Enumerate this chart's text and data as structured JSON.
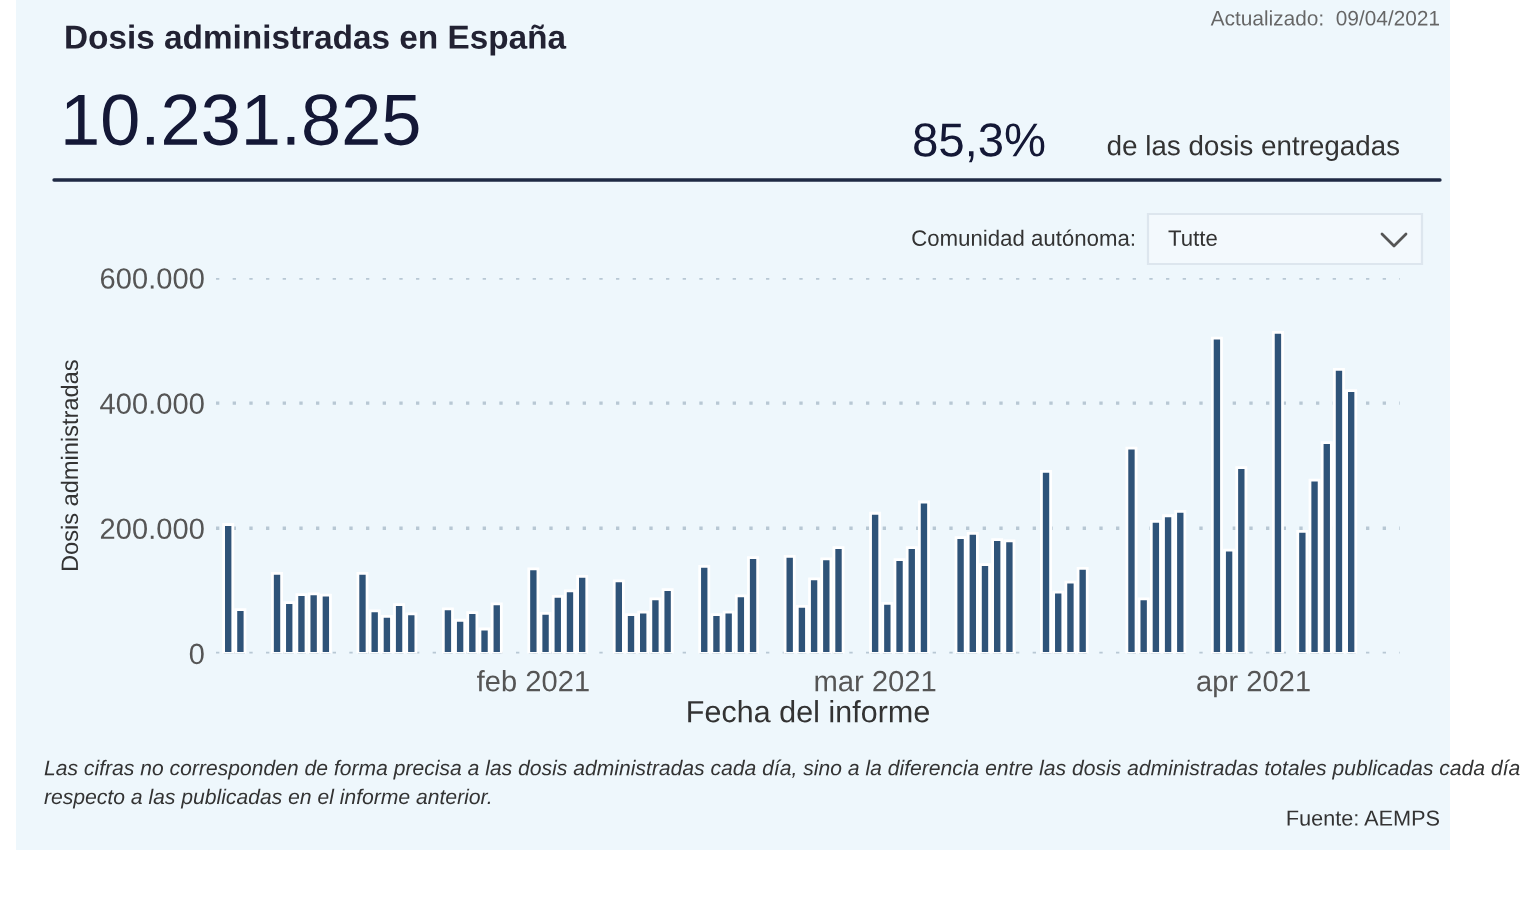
{
  "chart_data": {
    "type": "bar",
    "title": "Dosis administradas en España",
    "subtitle": "10.231.825",
    "xlabel": "Fecha del informe",
    "ylabel": "Dosis administradas",
    "annotations": [
      "Actualizado:  09/04/2021",
      "85,3%",
      "de las dosis entregadas",
      "Comunidad autónoma:",
      "Tutte",
      "Las cifras no corresponden de forma precisa a las dosis administradas cada día, sino a la diferencia entre las dosis administradas totales publicadas cada día respecto a las publicadas en el informe anterior.",
      "Fuente: AEMPS"
    ],
    "x": [
      "2021-01-07",
      "2021-01-08",
      "2021-01-11",
      "2021-01-12",
      "2021-01-13",
      "2021-01-14",
      "2021-01-15",
      "2021-01-18",
      "2021-01-19",
      "2021-01-20",
      "2021-01-21",
      "2021-01-22",
      "2021-01-25",
      "2021-01-26",
      "2021-01-27",
      "2021-01-28",
      "2021-01-29",
      "2021-02-01",
      "2021-02-02",
      "2021-02-03",
      "2021-02-04",
      "2021-02-05",
      "2021-02-08",
      "2021-02-09",
      "2021-02-10",
      "2021-02-11",
      "2021-02-12",
      "2021-02-15",
      "2021-02-16",
      "2021-02-17",
      "2021-02-18",
      "2021-02-19",
      "2021-02-22",
      "2021-02-23",
      "2021-02-24",
      "2021-02-25",
      "2021-02-26",
      "2021-03-01",
      "2021-03-02",
      "2021-03-03",
      "2021-03-04",
      "2021-03-05",
      "2021-03-08",
      "2021-03-09",
      "2021-03-10",
      "2021-03-11",
      "2021-03-12",
      "2021-03-15",
      "2021-03-16",
      "2021-03-17",
      "2021-03-18",
      "2021-03-22",
      "2021-03-23",
      "2021-03-24",
      "2021-03-25",
      "2021-03-26",
      "2021-03-29",
      "2021-03-30",
      "2021-03-31",
      "2021-04-03",
      "2021-04-05",
      "2021-04-06",
      "2021-04-07",
      "2021-04-08",
      "2021-04-09"
    ],
    "values": [
      206000,
      70000,
      128000,
      81000,
      94000,
      95000,
      93000,
      128000,
      68000,
      59000,
      78000,
      63000,
      71000,
      53000,
      65000,
      39000,
      79000,
      135000,
      64000,
      91000,
      100000,
      123000,
      116000,
      62000,
      66000,
      87000,
      102000,
      139000,
      62000,
      66000,
      92000,
      153000,
      155000,
      75000,
      119000,
      151000,
      169000,
      224000,
      80000,
      150000,
      169000,
      242000,
      185000,
      192000,
      142000,
      182000,
      180000,
      291000,
      98000,
      114000,
      136000,
      328000,
      87000,
      211000,
      220000,
      227000,
      504000,
      165000,
      297000,
      513000,
      195000,
      277000,
      337000,
      454000,
      420000
    ],
    "color": "#2f5378",
    "xlim": [
      "2021-01-06",
      "2021-04-13"
    ],
    "xticks": [
      {
        "value": "2021-02-01",
        "label": "feb 2021"
      },
      {
        "value": "2021-03-01",
        "label": "mar 2021"
      },
      {
        "value": "2021-04-01",
        "label": "apr 2021"
      }
    ],
    "ylim": [
      0,
      600000
    ],
    "yticks": [
      {
        "value": 0,
        "label": "0"
      },
      {
        "value": 200000,
        "label": "200.000"
      },
      {
        "value": 400000,
        "label": "400.000"
      },
      {
        "value": 600000,
        "label": "600.000"
      }
    ],
    "grid": "y"
  }
}
